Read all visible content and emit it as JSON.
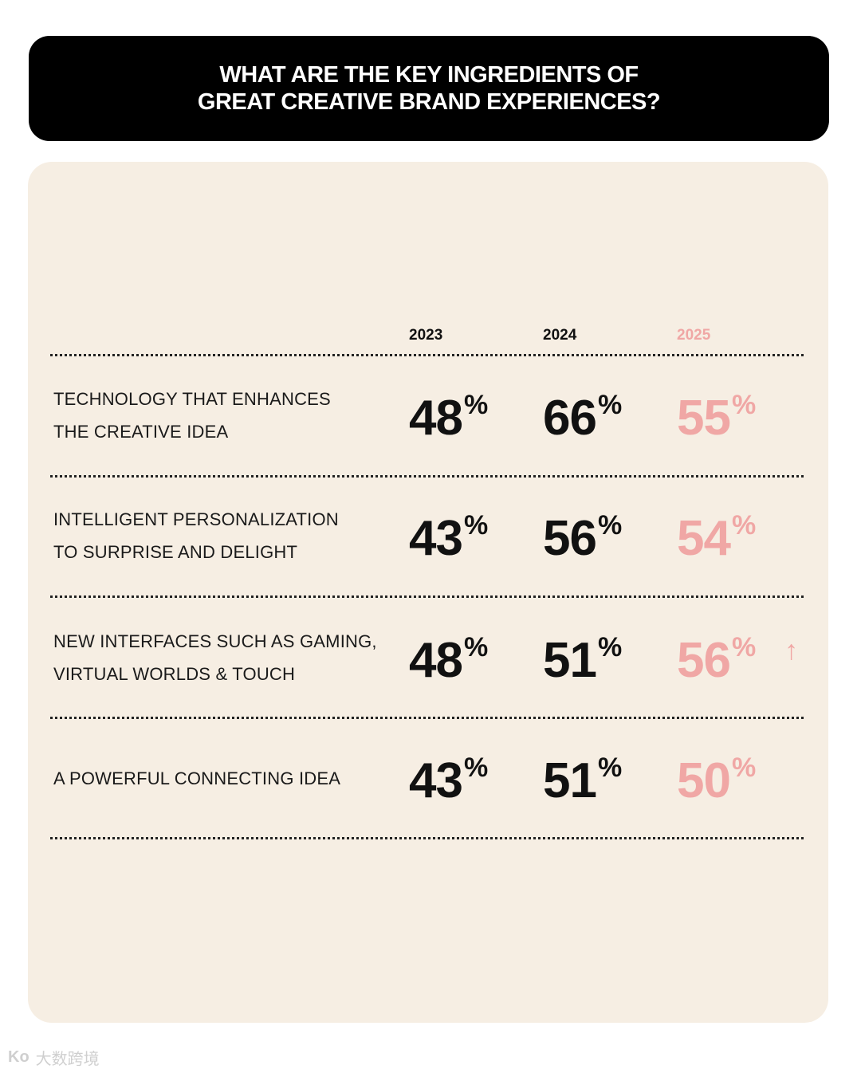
{
  "header": {
    "title_line1": "WHAT ARE THE KEY INGREDIENTS OF",
    "title_line2": "GREAT CREATIVE BRAND EXPERIENCES?"
  },
  "chart_data": {
    "type": "table",
    "title": "WHAT ARE THE KEY INGREDIENTS OF GREAT CREATIVE BRAND EXPERIENCES?",
    "columns": [
      "2023",
      "2024",
      "2025"
    ],
    "unit": "%",
    "rows": [
      {
        "label_lines": [
          "TECHNOLOGY THAT ENHANCES",
          "THE CREATIVE IDEA"
        ],
        "values": [
          48,
          66,
          55
        ],
        "trend": ""
      },
      {
        "label_lines": [
          "INTELLIGENT PERSONALIZATION",
          "TO SURPRISE AND DELIGHT"
        ],
        "values": [
          43,
          56,
          54
        ],
        "trend": ""
      },
      {
        "label_lines": [
          "NEW INTERFACES SUCH AS GAMING,",
          "VIRTUAL WORLDS & TOUCH"
        ],
        "values": [
          48,
          51,
          56
        ],
        "trend": "↑"
      },
      {
        "label_lines": [
          "A POWERFUL CONNECTING IDEA"
        ],
        "values": [
          43,
          51,
          50
        ],
        "trend": ""
      }
    ],
    "colors": {
      "past_years": "#111111",
      "current_year": "#f0a7a5"
    }
  },
  "watermark": {
    "logo": "Ko",
    "text": "大数跨境"
  }
}
